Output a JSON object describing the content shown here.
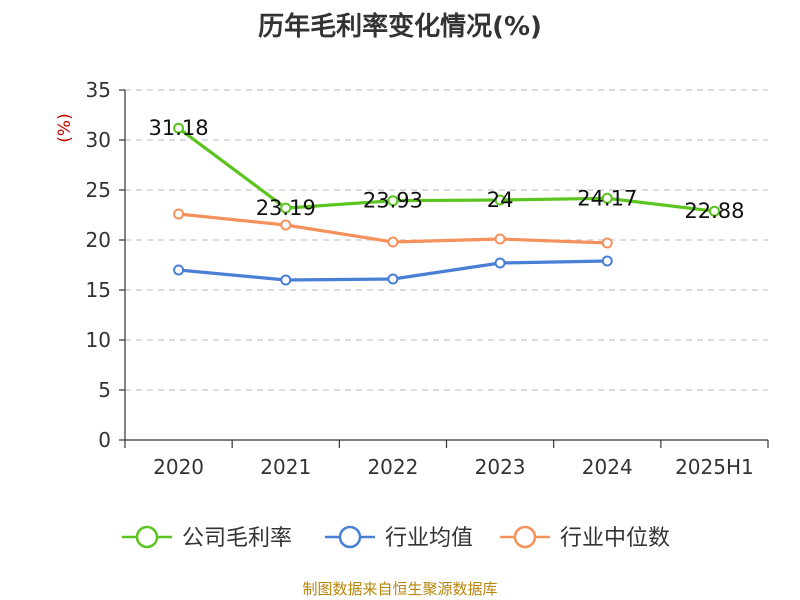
{
  "chart_data": {
    "type": "line",
    "title": "历年毛利率变化情况(%)",
    "ylabel": "(%)",
    "categories": [
      "2020",
      "2021",
      "2022",
      "2023",
      "2024",
      "2025H1"
    ],
    "ylim": [
      0,
      35
    ],
    "yticks": [
      0,
      5,
      10,
      15,
      20,
      25,
      30,
      35
    ],
    "grid": true,
    "legend_position": "bottom",
    "series": [
      {
        "name": "公司毛利率",
        "color": "#5cc41f",
        "values": [
          31.18,
          23.19,
          23.93,
          24,
          24.17,
          22.88
        ],
        "labels": [
          "31.18",
          "23.19",
          "23.93",
          "24",
          "24.17",
          "22.88"
        ]
      },
      {
        "name": "行业均值",
        "color": "#4a7fd6",
        "values": [
          17.0,
          16.0,
          16.1,
          17.7,
          17.9,
          null
        ]
      },
      {
        "name": "行业中位数",
        "color": "#f5915c",
        "values": [
          22.6,
          21.5,
          19.8,
          20.1,
          19.7,
          null
        ]
      }
    ]
  },
  "footer": {
    "source": "制图数据来自恒生聚源数据库"
  }
}
